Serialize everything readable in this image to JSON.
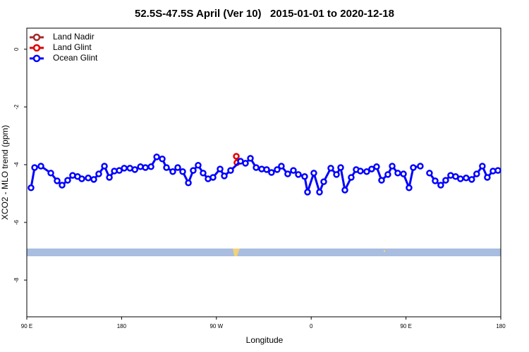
{
  "chart_data": {
    "type": "line",
    "title": "52.5S-47.5S April (Ver 10)   2015-01-01 to 2020-12-18",
    "xlabel": "Longitude",
    "ylabel": "XCO2 - MLO trend (ppm)",
    "xlim": [
      90,
      540
    ],
    "ylim": [
      -9.27,
      0.73
    ],
    "xticks": [
      {
        "value": 90,
        "label": "90 E"
      },
      {
        "value": 180,
        "label": "180"
      },
      {
        "value": 270,
        "label": "90 W"
      },
      {
        "value": 360,
        "label": "0"
      },
      {
        "value": 450,
        "label": "90 E"
      },
      {
        "value": 540,
        "label": "180"
      }
    ],
    "yticks": [
      0,
      -2,
      -4,
      -6,
      -8
    ],
    "grid": false,
    "legend": "top-left",
    "series": [
      {
        "name": "Land Nadir",
        "color": "#a52a2a",
        "x": [],
        "values": []
      },
      {
        "name": "Land Glint",
        "color": "#e00000",
        "x": [
          288.9,
          289.5
        ],
        "values": [
          -3.71,
          -3.93
        ]
      },
      {
        "name": "Ocean Glint",
        "color": "#0000ff",
        "x": [
          94.0,
          97.4,
          103.4,
          112.8,
          118.8,
          123.5,
          128.8,
          133.5,
          138.2,
          142.2,
          148.3,
          153.6,
          158.3,
          163.7,
          168.4,
          173.1,
          177.8,
          182.5,
          187.9,
          192.6,
          197.9,
          202.6,
          207.9,
          213.3,
          218.6,
          222.6,
          228.6,
          233.3,
          238.0,
          243.4,
          248.0,
          252.7,
          257.4,
          262.1,
          266.8,
          273.5,
          277.5,
          283.5,
          292.9,
          297.6,
          302.3,
          307.7,
          313.0,
          317.7,
          322.3,
          327.7,
          331.7,
          337.7,
          343.1,
          347.8,
          353.8,
          356.5,
          362.5,
          367.9,
          371.9,
          378.6,
          384.0,
          388.0,
          392.0,
          398.0,
          402.7,
          406.7,
          412.7,
          417.4,
          422.1,
          426.8,
          432.8,
          436.9,
          442.2,
          447.6,
          452.9,
          456.9,
          463.6,
          468.0,
          472.3,
          477.7,
          483.0,
          487.7,
          492.4,
          497.1,
          501.7,
          507.1,
          512.4,
          517.1,
          522.5,
          527.2,
          532.6,
          537.3
        ],
        "values": [
          -4.8,
          -4.1,
          -4.05,
          -4.29,
          -4.56,
          -4.71,
          -4.54,
          -4.37,
          -4.41,
          -4.49,
          -4.46,
          -4.51,
          -4.32,
          -4.05,
          -4.44,
          -4.22,
          -4.2,
          -4.12,
          -4.12,
          -4.17,
          -4.07,
          -4.1,
          -4.07,
          -3.73,
          -3.8,
          -4.1,
          -4.24,
          -4.1,
          -4.24,
          -4.63,
          -4.2,
          -4.02,
          -4.29,
          -4.49,
          -4.44,
          -4.15,
          -4.39,
          -4.2,
          -3.88,
          -3.95,
          -3.78,
          -4.1,
          -4.15,
          -4.17,
          -4.27,
          -4.17,
          -4.05,
          -4.32,
          -4.2,
          -4.34,
          -4.41,
          -4.95,
          -4.29,
          -4.95,
          -4.59,
          -4.12,
          -4.34,
          -4.1,
          -4.88,
          -4.44,
          -4.17,
          -4.22,
          -4.24,
          -4.15,
          -4.07,
          -4.54,
          -4.34,
          -4.05,
          -4.29,
          -4.32,
          -4.8,
          -4.1,
          -4.05,
          null,
          -4.29,
          -4.56,
          -4.71,
          -4.54,
          -4.37,
          -4.41,
          -4.49,
          -4.46,
          -4.51,
          -4.32,
          -4.05,
          -4.44,
          -4.22,
          -4.2
        ]
      }
    ]
  }
}
